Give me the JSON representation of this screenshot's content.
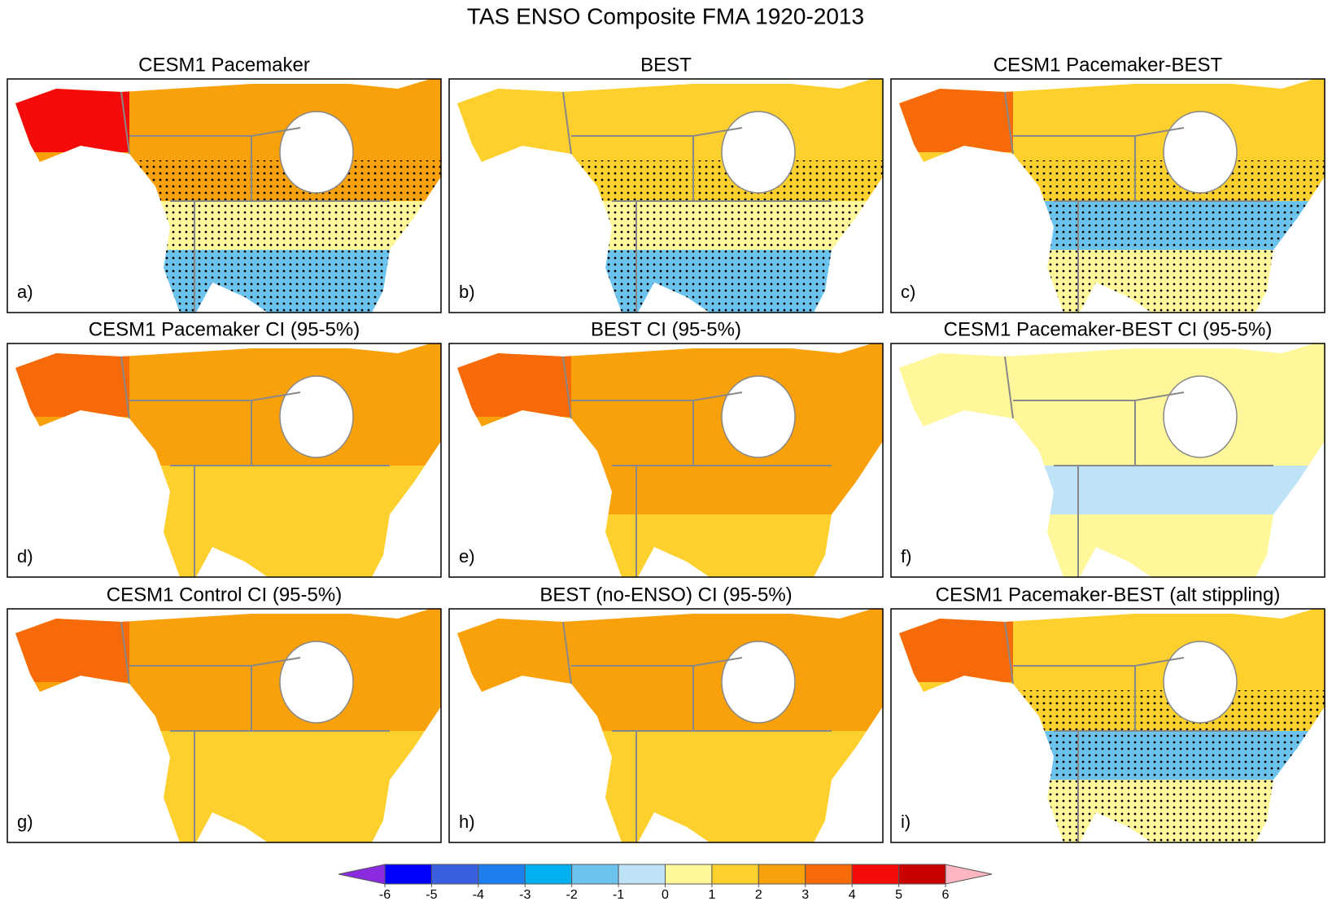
{
  "title": "TAS ENSO Composite FMA 1920-2013",
  "panels": [
    {
      "title": "CESM1 Pacemaker",
      "label": "a)"
    },
    {
      "title": "BEST",
      "label": "b)"
    },
    {
      "title": "CESM1 Pacemaker-BEST",
      "label": "c)"
    },
    {
      "title": "CESM1 Pacemaker CI (95-5%)",
      "label": "d)"
    },
    {
      "title": "BEST CI (95-5%)",
      "label": "e)"
    },
    {
      "title": "CESM1 Pacemaker-BEST CI (95-5%)",
      "label": "f)"
    },
    {
      "title": "CESM1 Control CI (95-5%)",
      "label": "g)"
    },
    {
      "title": "BEST (no-ENSO) CI (95-5%)",
      "label": "h)"
    },
    {
      "title": "CESM1 Pacemaker-BEST (alt stippling)",
      "label": "i)"
    }
  ],
  "colorbar": {
    "colors": [
      "#8a2be2",
      "#0000ff",
      "#3a5fe0",
      "#1e80f0",
      "#00b0f0",
      "#6cc4ee",
      "#bfe3f6",
      "#fff79a",
      "#fdd02e",
      "#f9a10a",
      "#f76a0a",
      "#f50a0a",
      "#c80000",
      "#ffb6c1"
    ],
    "ticks": [
      -6,
      -5,
      -4,
      -3,
      -2,
      -1,
      0,
      1,
      2,
      3,
      4,
      5,
      6
    ]
  }
}
